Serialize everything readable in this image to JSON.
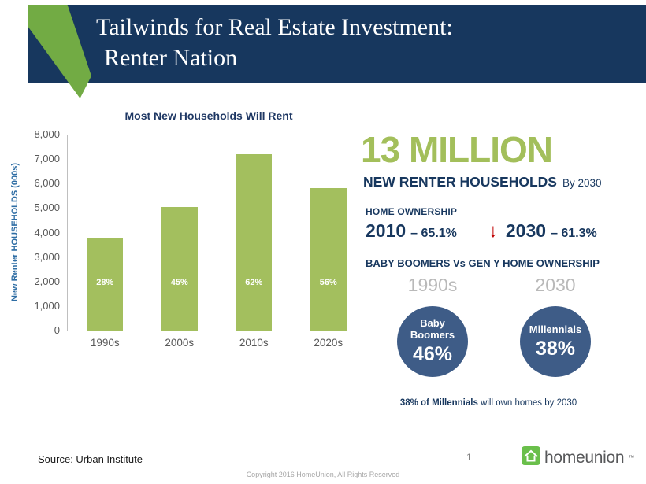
{
  "colors": {
    "navy": "#17375e",
    "green_accent": "#72ab44",
    "bar_green": "#a3bf5e",
    "big_number_green": "#a3bf5b",
    "circle_blue": "#3e5c87",
    "red_arrow": "#c00000",
    "period_gray": "#b9b9b9",
    "axis_gray": "#595959",
    "ylabel_blue": "#2e6da4",
    "logo_green": "#6abf4b"
  },
  "header": {
    "title_line1": "Tailwinds for Real Estate Investment:",
    "title_line2": "Renter Nation"
  },
  "chart_data": {
    "type": "bar",
    "title": "Most New Households Will Rent",
    "xlabel": "",
    "ylabel": "New Renter HOUSEHOLDS (000s)",
    "categories": [
      "1990s",
      "2000s",
      "2010s",
      "2020s"
    ],
    "values": [
      3800,
      5050,
      7200,
      5800
    ],
    "bar_labels": [
      "28%",
      "45%",
      "62%",
      "56%"
    ],
    "ylim": [
      0,
      8000
    ],
    "ytick_labels": [
      "0",
      "1,000",
      "2,000",
      "3,000",
      "4,000",
      "5,000",
      "6,000",
      "7,000",
      "8,000"
    ],
    "grid": false,
    "legend": false
  },
  "stats": {
    "big_number": "13 MILLION",
    "renter_households": "NEW RENTER HOUSEHOLDS",
    "by_2030": "By 2030",
    "home_ownership_heading": "HOME OWNERSHIP",
    "ownership_2010_year": "2010",
    "ownership_2010_value": "– 65.1%",
    "down_arrow": "↓",
    "ownership_2030_year": "2030",
    "ownership_2030_value": "– 61.3%",
    "comparison_heading": "BABY BOOMERS Vs GEN Y HOME OWNERSHIP",
    "left_period": "1990s",
    "right_period": "2030",
    "circle1_line1": "Baby",
    "circle1_line2": "Boomers",
    "circle1_value": "46%",
    "circle2_label": "Millennials",
    "circle2_value": "38%",
    "footnote_bold": "38% of Millennials",
    "footnote_rest": " will own homes by 2030"
  },
  "footer": {
    "source": "Source: Urban Institute",
    "page_number": "1",
    "logo_text": "homeunion",
    "logo_tm": "™",
    "copyright": "Copyright 2016 HomeUnion, All Rights Reserved"
  }
}
